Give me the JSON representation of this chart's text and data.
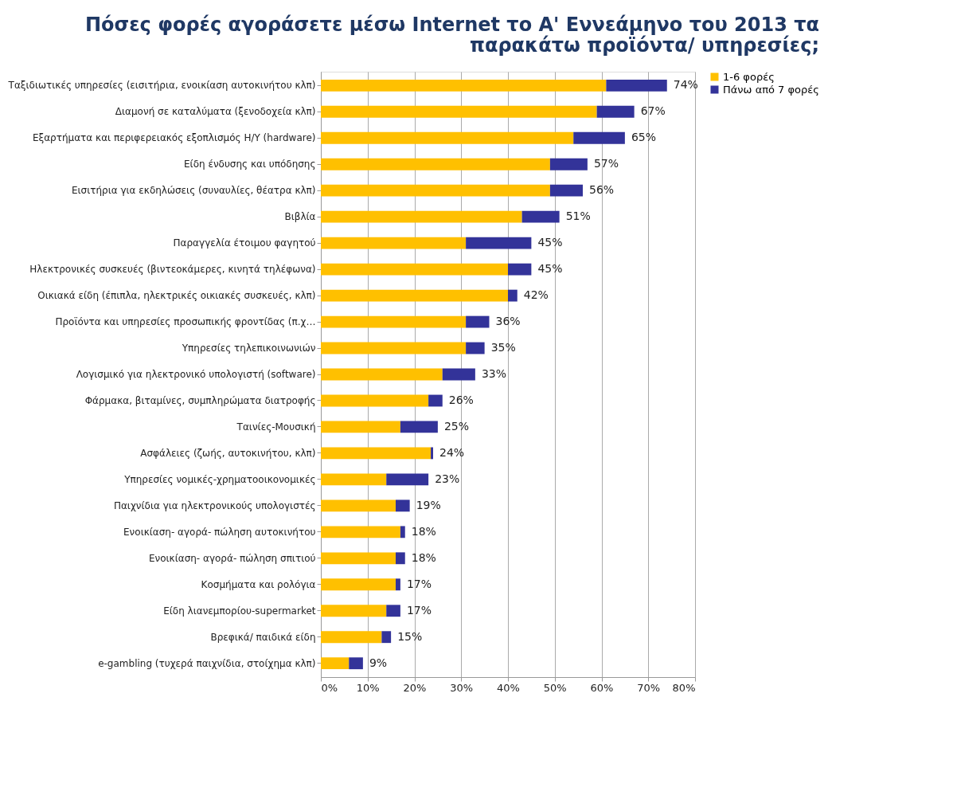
{
  "chart_data": {
    "type": "bar",
    "orientation": "horizontal",
    "stacked": true,
    "title": [
      "Πόσες φορές αγοράσετε μέσω Internet το Α' Εννεάμηνο του 2013 τα",
      "παρακάτω προϊόντα/ υπηρεσίες;"
    ],
    "categories": [
      "Ταξιδιωτικές υπηρεσίες (εισιτήρια, ενοικίαση αυτοκινήτου κλπ)",
      "Διαμονή σε καταλύματα (ξενοδοχεία κλπ)",
      "Εξαρτήματα και περιφερειακός εξοπλισμός Η/Υ (hardware)",
      "Είδη ένδυσης και υπόδησης",
      "Εισιτήρια για εκδηλώσεις (συναυλίες, θέατρα κλπ)",
      "Βιβλία",
      "Παραγγελία έτοιμου φαγητού",
      "Ηλεκτρονικές συσκευές (βιντεοκάμερες, κινητά τηλέφωνα)",
      "Οικιακά είδη (έπιπλα, ηλεκτρικές οικιακές συσκευές, κλπ)",
      "Προϊόντα και υπηρεσίες προσωπικής φροντίδας (π.χ…",
      "Υπηρεσίες τηλεπικοινωνιών",
      "Λογισμικό για ηλεκτρονικό υπολογιστή (software)",
      "Φάρμακα, βιταμίνες, συμπληρώματα διατροφής",
      "Ταινίες-Μουσική",
      "Ασφάλειες (ζωής, αυτοκινήτου, κλπ)",
      "Υπηρεσίες νομικές-χρηματοοικονομικές",
      "Παιχνίδια για ηλεκτρονικούς υπολογιστές",
      "Ενοικίαση- αγορά- πώληση αυτοκινήτου",
      "Ενοικίαση- αγορά- πώληση σπιτιού",
      "Κοσμήματα και ρολόγια",
      "Είδη λιανεμπορίου-supermarket",
      "Βρεφικά/ παιδικά είδη",
      "e-gambling (τυχερά παιχνίδια, στοίχημα κλπ)"
    ],
    "series": [
      {
        "name": "1-6 φορές",
        "color": "#ffc000",
        "values": [
          61,
          59,
          54,
          49,
          49,
          43,
          31,
          40,
          40,
          31,
          31,
          26,
          23,
          17,
          23.5,
          14,
          16,
          17,
          16,
          16,
          14,
          13,
          6
        ]
      },
      {
        "name": "Πάνω από 7 φορές",
        "color": "#333399",
        "values": [
          13,
          8,
          11,
          8,
          7,
          8,
          14,
          5,
          2,
          5,
          4,
          7,
          3,
          8,
          0.5,
          9,
          3,
          1,
          2,
          1,
          3,
          2,
          3
        ]
      }
    ],
    "totals": [
      "74%",
      "67%",
      "65%",
      "57%",
      "56%",
      "51%",
      "45%",
      "45%",
      "42%",
      "36%",
      "35%",
      "33%",
      "26%",
      "25%",
      "24%",
      "23%",
      "19%",
      "18%",
      "18%",
      "17%",
      "17%",
      "15%",
      "9%"
    ],
    "xlim": [
      0,
      80
    ],
    "xticks": [
      {
        "value": 0,
        "label": "0%"
      },
      {
        "value": 10,
        "label": "10%"
      },
      {
        "value": 20,
        "label": "20%"
      },
      {
        "value": 30,
        "label": "30%"
      },
      {
        "value": 40,
        "label": "40%"
      },
      {
        "value": 50,
        "label": "50%"
      },
      {
        "value": 60,
        "label": "60%"
      },
      {
        "value": 70,
        "label": "70%"
      },
      {
        "value": 80,
        "label": "80%"
      }
    ],
    "grid": "x",
    "legend": "right"
  }
}
